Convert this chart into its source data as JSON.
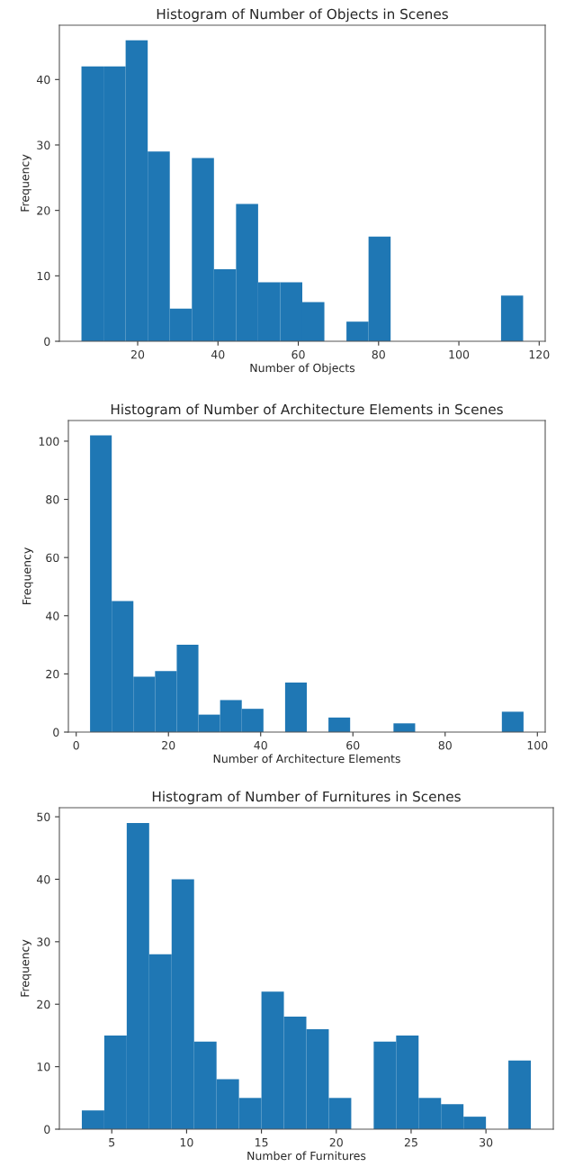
{
  "chart_data": [
    {
      "type": "histogram",
      "title": "Histogram of Number of Objects in Scenes",
      "xlabel": "Number of Objects",
      "ylabel": "Frequency",
      "color": "#1f77b4",
      "bins": [
        6,
        11.5,
        17,
        22.5,
        28,
        33.5,
        39,
        44.5,
        50,
        55.5,
        61,
        66.5,
        72,
        77.5,
        83,
        88.5,
        94,
        99.5,
        105,
        110.5,
        116
      ],
      "values": [
        42,
        42,
        46,
        29,
        5,
        28,
        11,
        21,
        9,
        9,
        6,
        0,
        3,
        16,
        0,
        0,
        0,
        0,
        0,
        7
      ],
      "xlim": [
        0.5,
        121.5
      ],
      "ylim": [
        0,
        48.3
      ],
      "xticks": [
        20,
        40,
        60,
        80,
        100,
        120
      ],
      "yticks": [
        0,
        10,
        20,
        30,
        40
      ]
    },
    {
      "type": "histogram",
      "title": "Histogram of Number of Architecture Elements in Scenes",
      "xlabel": "Number of Architecture Elements",
      "ylabel": "Frequency",
      "color": "#1f77b4",
      "bins": [
        3,
        7.7,
        12.4,
        17.1,
        21.8,
        26.5,
        31.2,
        35.9,
        40.6,
        45.3,
        50,
        54.7,
        59.4,
        64.1,
        68.8,
        73.5,
        78.2,
        82.9,
        87.6,
        92.3,
        97
      ],
      "values": [
        102,
        45,
        19,
        21,
        30,
        6,
        11,
        8,
        0,
        17,
        0,
        5,
        0,
        0,
        3,
        0,
        0,
        0,
        0,
        7
      ],
      "xlim": [
        -1.7,
        101.7
      ],
      "ylim": [
        0,
        107.1
      ],
      "xticks": [
        0,
        20,
        40,
        60,
        80,
        100
      ],
      "yticks": [
        0,
        20,
        40,
        60,
        80,
        100
      ]
    },
    {
      "type": "histogram",
      "title": "Histogram of Number of Furnitures in Scenes",
      "xlabel": "Number of Furnitures",
      "ylabel": "Frequency",
      "color": "#1f77b4",
      "bins": [
        3,
        4.5,
        6,
        7.5,
        9,
        10.5,
        12,
        13.5,
        15,
        16.5,
        18,
        19.5,
        21,
        22.5,
        24,
        25.5,
        27,
        28.5,
        30,
        31.5,
        33
      ],
      "values": [
        3,
        15,
        49,
        28,
        40,
        14,
        8,
        5,
        22,
        18,
        16,
        5,
        0,
        14,
        15,
        5,
        4,
        2,
        0,
        11
      ],
      "xlim": [
        1.5,
        34.5
      ],
      "ylim": [
        0,
        51.45
      ],
      "xticks": [
        5,
        10,
        15,
        20,
        25,
        30
      ],
      "yticks": [
        0,
        10,
        20,
        30,
        40,
        50
      ]
    }
  ]
}
